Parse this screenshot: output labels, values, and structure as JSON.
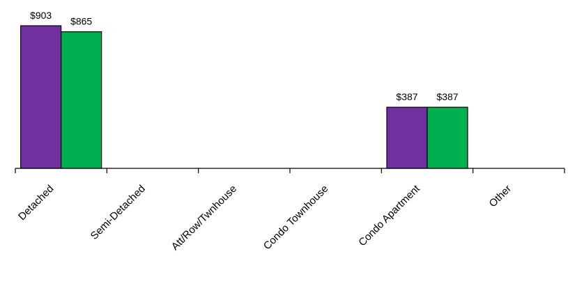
{
  "chart_data": {
    "type": "bar",
    "categories": [
      "Detached",
      "Semi-Detached",
      "Att/Row/Twnhouse",
      "Condo Townhouse",
      "Condo Apartment",
      "Other"
    ],
    "series": [
      {
        "values": [
          903,
          null,
          null,
          null,
          387,
          null
        ],
        "labels": [
          "$903",
          "",
          "",
          "",
          "$387",
          ""
        ],
        "color": "#7030A0"
      },
      {
        "values": [
          865,
          null,
          null,
          null,
          387,
          null
        ],
        "labels": [
          "$865",
          "",
          "",
          "",
          "$387",
          ""
        ],
        "color": "#00B050"
      }
    ],
    "ylim": [
      0,
      903
    ],
    "grid": false,
    "legend": "none",
    "title": "",
    "xlabel": "",
    "ylabel": ""
  }
}
